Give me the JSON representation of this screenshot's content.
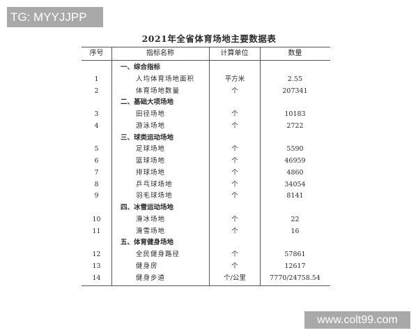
{
  "watermarks": {
    "top_left": "TG: MYYJJPP",
    "bottom_right": "www.colt99.com"
  },
  "title": "2021年全省体育场地主要数据表",
  "headers": [
    "序号",
    "指标名称",
    "计算单位",
    "数量"
  ],
  "rows": [
    {
      "type": "section",
      "name": "一、综合指标"
    },
    {
      "type": "item",
      "seq": "1",
      "name": "人均体育场地面积",
      "unit": "平方米",
      "qty": "2.55"
    },
    {
      "type": "item",
      "seq": "2",
      "name": "体育场地数量",
      "unit": "个",
      "qty": "207341"
    },
    {
      "type": "section",
      "name": "二、基础大项场地"
    },
    {
      "type": "item",
      "seq": "3",
      "name": "田径场地",
      "unit": "个",
      "qty": "10183"
    },
    {
      "type": "item",
      "seq": "4",
      "name": "游泳场地",
      "unit": "个",
      "qty": "2722"
    },
    {
      "type": "section",
      "name": "三、球类运动场地"
    },
    {
      "type": "item",
      "seq": "5",
      "name": "足球场地",
      "unit": "个",
      "qty": "5590"
    },
    {
      "type": "item",
      "seq": "6",
      "name": "篮球场地",
      "unit": "个",
      "qty": "46959"
    },
    {
      "type": "item",
      "seq": "7",
      "name": "排球场地",
      "unit": "个",
      "qty": "4860"
    },
    {
      "type": "item",
      "seq": "8",
      "name": "乒乓球场地",
      "unit": "个",
      "qty": "34054"
    },
    {
      "type": "item",
      "seq": "9",
      "name": "羽毛球场地",
      "unit": "个",
      "qty": "8141"
    },
    {
      "type": "section",
      "name": "四、冰雪运动场地"
    },
    {
      "type": "item",
      "seq": "10",
      "name": "滑冰场地",
      "unit": "个",
      "qty": "22"
    },
    {
      "type": "item",
      "seq": "11",
      "name": "滑雪场地",
      "unit": "个",
      "qty": "16"
    },
    {
      "type": "section",
      "name": "五、体育健身场地"
    },
    {
      "type": "item",
      "seq": "12",
      "name": "全民健身路径",
      "unit": "个",
      "qty": "57861"
    },
    {
      "type": "item",
      "seq": "13",
      "name": "健身房",
      "unit": "个",
      "qty": "12617"
    },
    {
      "type": "item",
      "seq": "14",
      "name": "健身步道",
      "unit": "个/公里",
      "qty": "7770/24758.54"
    }
  ]
}
